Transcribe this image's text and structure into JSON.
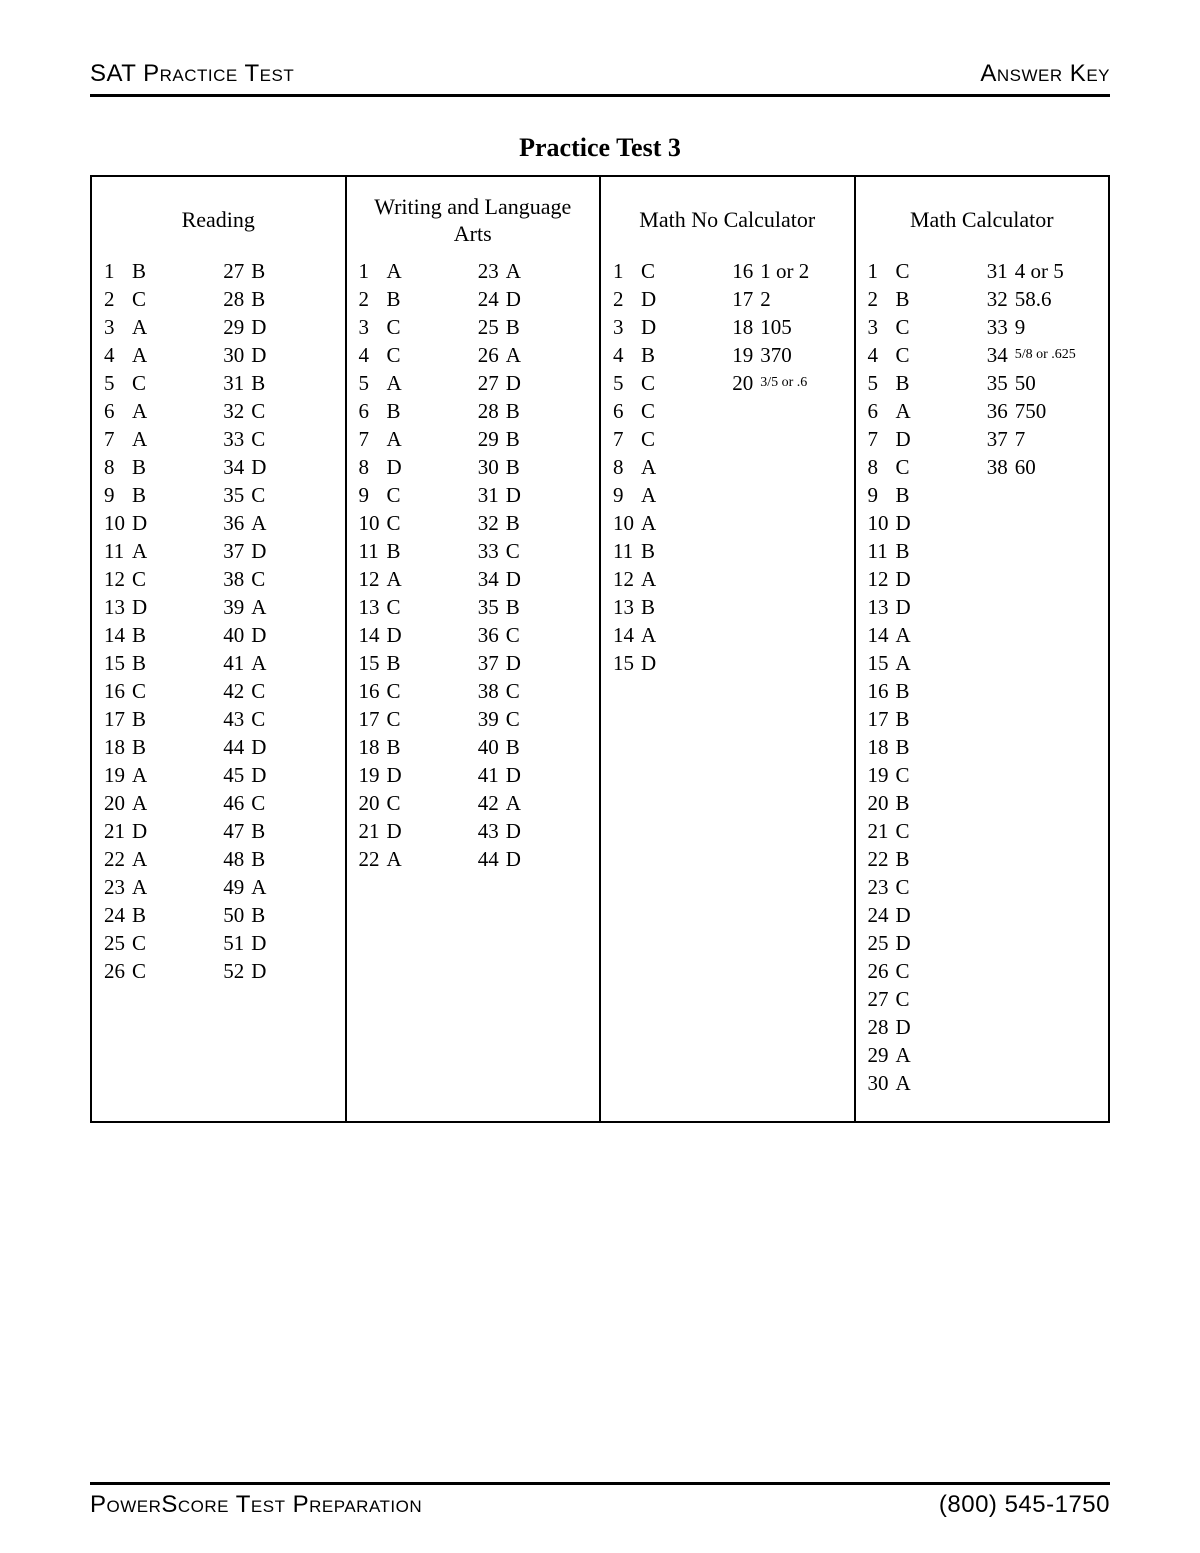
{
  "header": {
    "left": "SAT Practice Test",
    "right": "Answer Key"
  },
  "title": "Practice Test 3",
  "footer": {
    "left": "PowerScore Test Preparation",
    "right": "(800) 545-1750"
  },
  "sections": [
    {
      "title": "Reading",
      "columns": [
        [
          {
            "n": "1",
            "a": "B"
          },
          {
            "n": "2",
            "a": "C"
          },
          {
            "n": "3",
            "a": "A"
          },
          {
            "n": "4",
            "a": "A"
          },
          {
            "n": "5",
            "a": "C"
          },
          {
            "n": "6",
            "a": "A"
          },
          {
            "n": "7",
            "a": "A"
          },
          {
            "n": "8",
            "a": "B"
          },
          {
            "n": "9",
            "a": "B"
          },
          {
            "n": "10",
            "a": "D"
          },
          {
            "n": "11",
            "a": "A"
          },
          {
            "n": "12",
            "a": "C"
          },
          {
            "n": "13",
            "a": "D"
          },
          {
            "n": "14",
            "a": "B"
          },
          {
            "n": "15",
            "a": "B"
          },
          {
            "n": "16",
            "a": "C"
          },
          {
            "n": "17",
            "a": "B"
          },
          {
            "n": "18",
            "a": "B"
          },
          {
            "n": "19",
            "a": "A"
          },
          {
            "n": "20",
            "a": "A"
          },
          {
            "n": "21",
            "a": "D"
          },
          {
            "n": "22",
            "a": "A"
          },
          {
            "n": "23",
            "a": "A"
          },
          {
            "n": "24",
            "a": "B"
          },
          {
            "n": "25",
            "a": "C"
          },
          {
            "n": "26",
            "a": "C"
          }
        ],
        [
          {
            "n": "27",
            "a": "B"
          },
          {
            "n": "28",
            "a": "B"
          },
          {
            "n": "29",
            "a": "D"
          },
          {
            "n": "30",
            "a": "D"
          },
          {
            "n": "31",
            "a": "B"
          },
          {
            "n": "32",
            "a": "C"
          },
          {
            "n": "33",
            "a": "C"
          },
          {
            "n": "34",
            "a": "D"
          },
          {
            "n": "35",
            "a": "C"
          },
          {
            "n": "36",
            "a": "A"
          },
          {
            "n": "37",
            "a": "D"
          },
          {
            "n": "38",
            "a": "C"
          },
          {
            "n": "39",
            "a": "A"
          },
          {
            "n": "40",
            "a": "D"
          },
          {
            "n": "41",
            "a": "A"
          },
          {
            "n": "42",
            "a": "C"
          },
          {
            "n": "43",
            "a": "C"
          },
          {
            "n": "44",
            "a": "D"
          },
          {
            "n": "45",
            "a": "D"
          },
          {
            "n": "46",
            "a": "C"
          },
          {
            "n": "47",
            "a": "B"
          },
          {
            "n": "48",
            "a": "B"
          },
          {
            "n": "49",
            "a": "A"
          },
          {
            "n": "50",
            "a": "B"
          },
          {
            "n": "51",
            "a": "D"
          },
          {
            "n": "52",
            "a": "D"
          }
        ]
      ]
    },
    {
      "title": "Writing and Language Arts",
      "columns": [
        [
          {
            "n": "1",
            "a": "A"
          },
          {
            "n": "2",
            "a": "B"
          },
          {
            "n": "3",
            "a": "C"
          },
          {
            "n": "4",
            "a": "C"
          },
          {
            "n": "5",
            "a": "A"
          },
          {
            "n": "6",
            "a": "B"
          },
          {
            "n": "7",
            "a": "A"
          },
          {
            "n": "8",
            "a": "D"
          },
          {
            "n": "9",
            "a": "C"
          },
          {
            "n": "10",
            "a": "C"
          },
          {
            "n": "11",
            "a": "B"
          },
          {
            "n": "12",
            "a": "A"
          },
          {
            "n": "13",
            "a": "C"
          },
          {
            "n": "14",
            "a": "D"
          },
          {
            "n": "15",
            "a": "B"
          },
          {
            "n": "16",
            "a": "C"
          },
          {
            "n": "17",
            "a": "C"
          },
          {
            "n": "18",
            "a": "B"
          },
          {
            "n": "19",
            "a": "D"
          },
          {
            "n": "20",
            "a": "C"
          },
          {
            "n": "21",
            "a": "D"
          },
          {
            "n": "22",
            "a": "A"
          }
        ],
        [
          {
            "n": "23",
            "a": "A"
          },
          {
            "n": "24",
            "a": "D"
          },
          {
            "n": "25",
            "a": "B"
          },
          {
            "n": "26",
            "a": "A"
          },
          {
            "n": "27",
            "a": "D"
          },
          {
            "n": "28",
            "a": "B"
          },
          {
            "n": "29",
            "a": "B"
          },
          {
            "n": "30",
            "a": "B"
          },
          {
            "n": "31",
            "a": "D"
          },
          {
            "n": "32",
            "a": "B"
          },
          {
            "n": "33",
            "a": "C"
          },
          {
            "n": "34",
            "a": "D"
          },
          {
            "n": "35",
            "a": "B"
          },
          {
            "n": "36",
            "a": "C"
          },
          {
            "n": "37",
            "a": "D"
          },
          {
            "n": "38",
            "a": "C"
          },
          {
            "n": "39",
            "a": "C"
          },
          {
            "n": "40",
            "a": "B"
          },
          {
            "n": "41",
            "a": "D"
          },
          {
            "n": "42",
            "a": "A"
          },
          {
            "n": "43",
            "a": "D"
          },
          {
            "n": "44",
            "a": "D"
          }
        ]
      ]
    },
    {
      "title": "Math No Calculator",
      "columns": [
        [
          {
            "n": "1",
            "a": "C"
          },
          {
            "n": "2",
            "a": "D"
          },
          {
            "n": "3",
            "a": "D"
          },
          {
            "n": "4",
            "a": "B"
          },
          {
            "n": "5",
            "a": "C"
          },
          {
            "n": "6",
            "a": "C"
          },
          {
            "n": "7",
            "a": "C"
          },
          {
            "n": "8",
            "a": "A"
          },
          {
            "n": "9",
            "a": "A"
          },
          {
            "n": "10",
            "a": "A"
          },
          {
            "n": "11",
            "a": "B"
          },
          {
            "n": "12",
            "a": "A"
          },
          {
            "n": "13",
            "a": "B"
          },
          {
            "n": "14",
            "a": "A"
          },
          {
            "n": "15",
            "a": "D"
          }
        ],
        [
          {
            "n": "16",
            "a": "1 or 2"
          },
          {
            "n": "17",
            "a": "2"
          },
          {
            "n": "18",
            "a": "105"
          },
          {
            "n": "19",
            "a": "370"
          },
          {
            "n": "20",
            "a": "3/5 or .6",
            "small": true
          }
        ]
      ]
    },
    {
      "title": "Math Calculator",
      "columns": [
        [
          {
            "n": "1",
            "a": "C"
          },
          {
            "n": "2",
            "a": "B"
          },
          {
            "n": "3",
            "a": "C"
          },
          {
            "n": "4",
            "a": "C"
          },
          {
            "n": "5",
            "a": "B"
          },
          {
            "n": "6",
            "a": "A"
          },
          {
            "n": "7",
            "a": "D"
          },
          {
            "n": "8",
            "a": "C"
          },
          {
            "n": "9",
            "a": "B"
          },
          {
            "n": "10",
            "a": "D"
          },
          {
            "n": "11",
            "a": "B"
          },
          {
            "n": "12",
            "a": "D"
          },
          {
            "n": "13",
            "a": "D"
          },
          {
            "n": "14",
            "a": "A"
          },
          {
            "n": "15",
            "a": "A"
          },
          {
            "n": "16",
            "a": "B"
          },
          {
            "n": "17",
            "a": "B"
          },
          {
            "n": "18",
            "a": "B"
          },
          {
            "n": "19",
            "a": "C"
          },
          {
            "n": "20",
            "a": "B"
          },
          {
            "n": "21",
            "a": "C"
          },
          {
            "n": "22",
            "a": "B"
          },
          {
            "n": "23",
            "a": "C"
          },
          {
            "n": "24",
            "a": "D"
          },
          {
            "n": "25",
            "a": "D"
          },
          {
            "n": "26",
            "a": "C"
          },
          {
            "n": "27",
            "a": "C"
          },
          {
            "n": "28",
            "a": "D"
          },
          {
            "n": "29",
            "a": "A"
          },
          {
            "n": "30",
            "a": "A"
          }
        ],
        [
          {
            "n": "31",
            "a": "4 or 5"
          },
          {
            "n": "32",
            "a": "58.6"
          },
          {
            "n": "33",
            "a": "9"
          },
          {
            "n": "34",
            "a": "5/8 or .625",
            "small": true
          },
          {
            "n": "35",
            "a": "50"
          },
          {
            "n": "36",
            "a": "750"
          },
          {
            "n": "37",
            "a": "7"
          },
          {
            "n": "38",
            "a": "60"
          }
        ]
      ]
    }
  ]
}
